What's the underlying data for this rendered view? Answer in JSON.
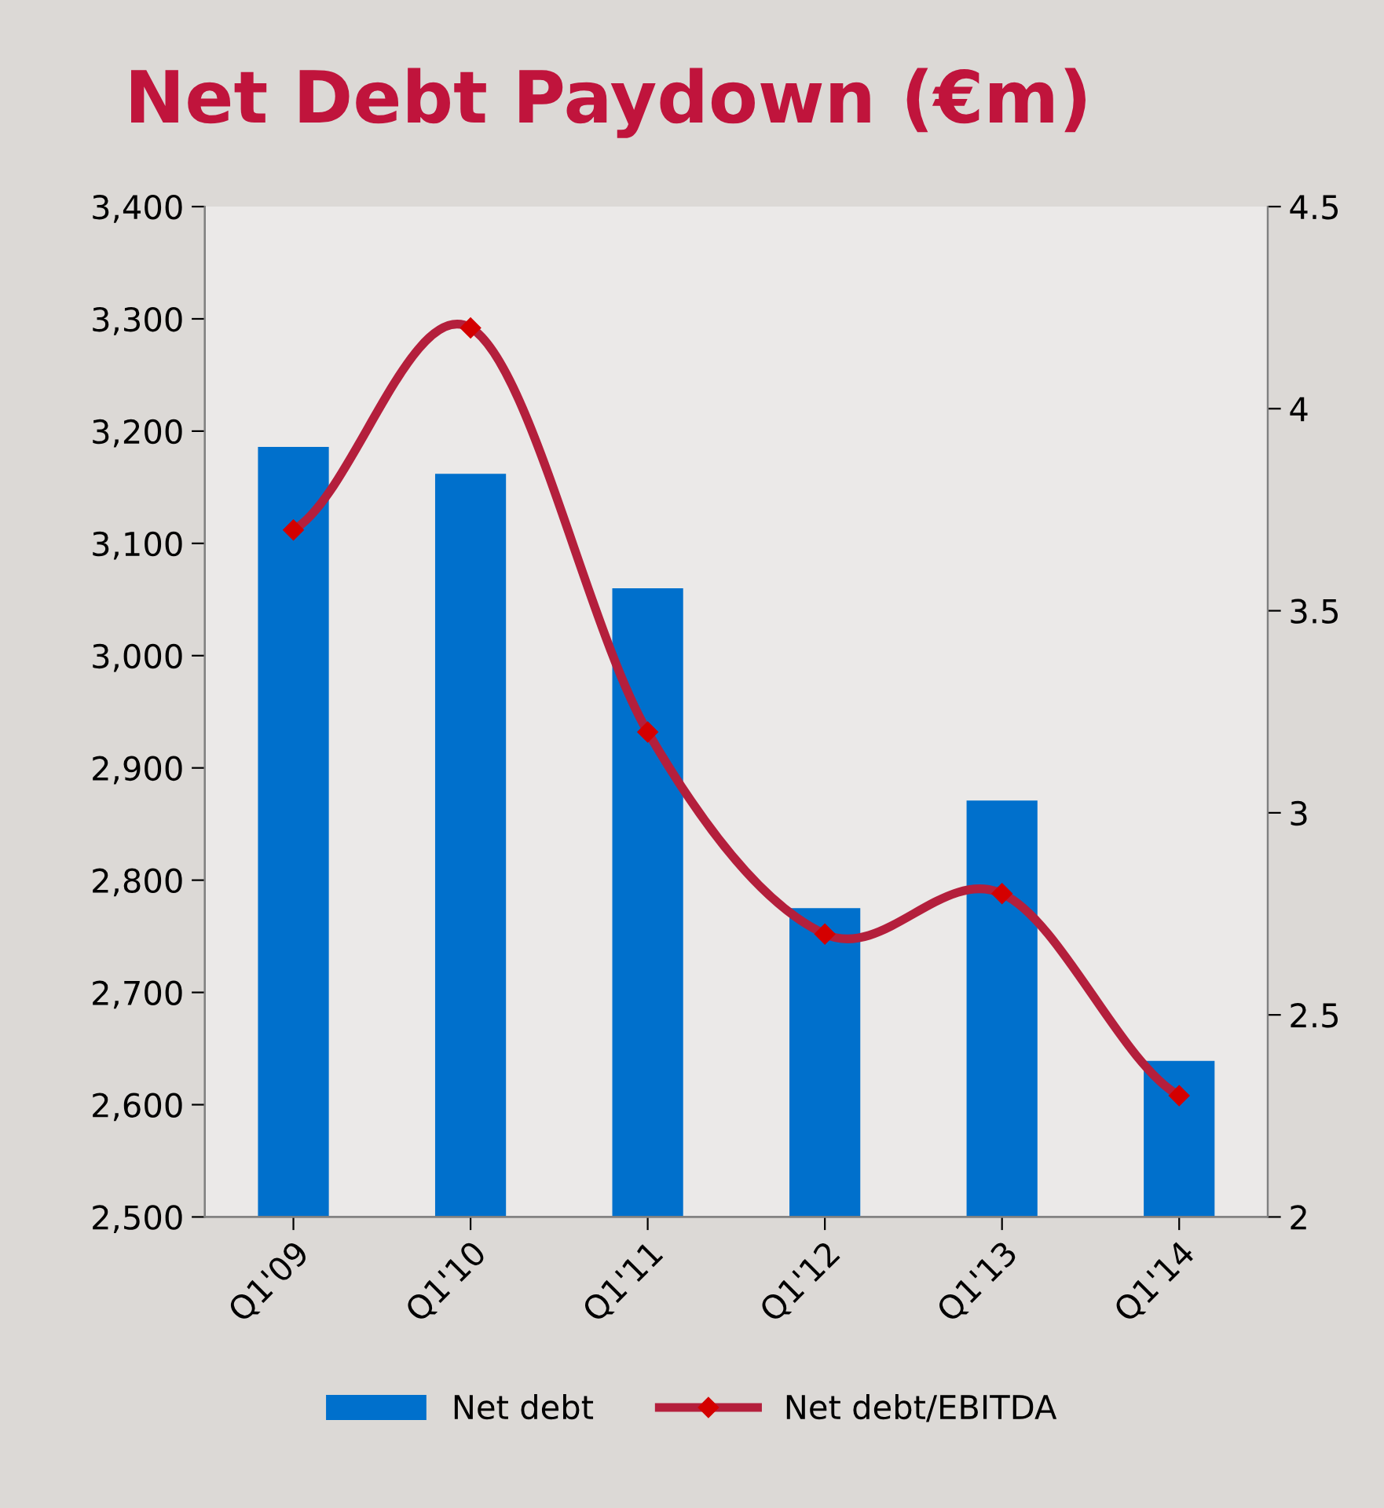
{
  "chart_data": {
    "type": "bar",
    "title": "Net Debt Paydown (€m)",
    "categories": [
      "Q1'09",
      "Q1'10",
      "Q1'11",
      "Q1'12",
      "Q1'13",
      "Q1'14"
    ],
    "series": [
      {
        "name": "Net debt",
        "color": "#0070cc",
        "values": [
          3186,
          3162,
          3060,
          2775,
          2871,
          2639
        ]
      },
      {
        "name": "Net debt/EBITDA",
        "type": "line",
        "axis": "y2",
        "color": "#b41f3c",
        "marker": "diamond",
        "values": [
          3.7,
          4.2,
          3.2,
          2.7,
          2.8,
          2.3
        ]
      }
    ],
    "ylim": [
      2500,
      3400
    ],
    "yticks": [
      {
        "value": 2500,
        "label": "2,500"
      },
      {
        "value": 2600,
        "label": "2,600"
      },
      {
        "value": 2700,
        "label": "2,700"
      },
      {
        "value": 2800,
        "label": "2,800"
      },
      {
        "value": 2900,
        "label": "2,900"
      },
      {
        "value": 3000,
        "label": "3,000"
      },
      {
        "value": 3100,
        "label": "3,100"
      },
      {
        "value": 3200,
        "label": "3,200"
      },
      {
        "value": 3300,
        "label": "3,300"
      },
      {
        "value": 3400,
        "label": "3,400"
      }
    ],
    "y2lim": [
      2,
      4.5
    ],
    "y2ticks": [
      2,
      2.5,
      3,
      3.5,
      4,
      4.5
    ],
    "grid": false,
    "legend": "bottom"
  }
}
